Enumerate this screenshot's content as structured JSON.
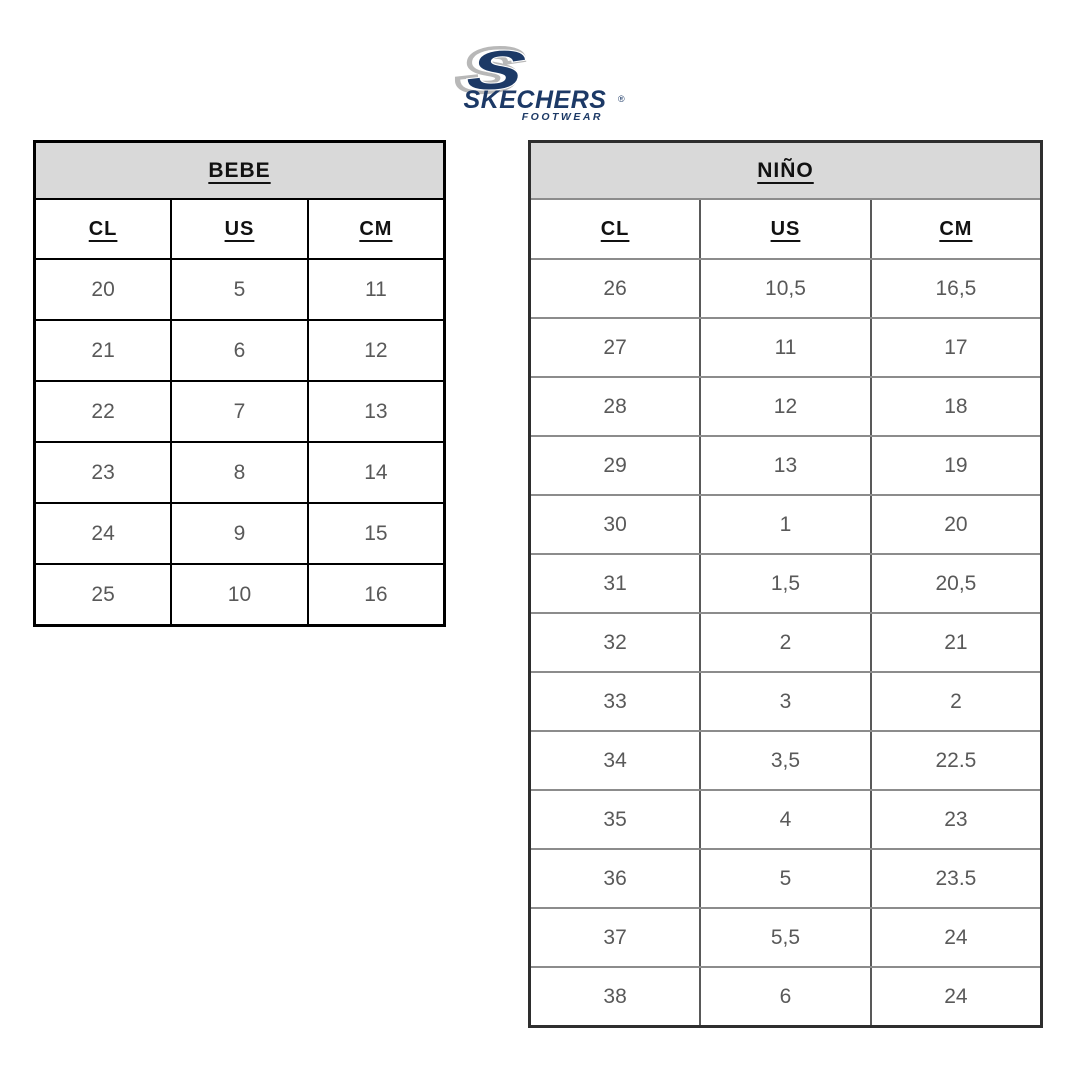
{
  "logo": {
    "monogram": "S",
    "brand": "SKECHERS",
    "registered": "®",
    "sub_brand": "FOOTWEAR",
    "navy": "#1c3966",
    "silver": "#b8b8b8"
  },
  "colors": {
    "header_bg": "#d9d9d9",
    "header_text": "#111111",
    "data_text": "#595959",
    "bebe_border": "#000000",
    "nino_border_horizontal": "#8c8c8c",
    "nino_border_vertical": "#595959",
    "page_bg": "#ffffff"
  },
  "tables": [
    {
      "id": "bebe",
      "title": "BEBE",
      "columns": [
        "CL",
        "US",
        "CM"
      ],
      "rows": [
        [
          "20",
          "5",
          "11"
        ],
        [
          "21",
          "6",
          "12"
        ],
        [
          "22",
          "7",
          "13"
        ],
        [
          "23",
          "8",
          "14"
        ],
        [
          "24",
          "9",
          "15"
        ],
        [
          "25",
          "10",
          "16"
        ]
      ]
    },
    {
      "id": "nino",
      "title": "NIÑO",
      "columns": [
        "CL",
        "US",
        "CM"
      ],
      "rows": [
        [
          "26",
          "10,5",
          "16,5"
        ],
        [
          "27",
          "11",
          "17"
        ],
        [
          "28",
          "12",
          "18"
        ],
        [
          "29",
          "13",
          "19"
        ],
        [
          "30",
          "1",
          "20"
        ],
        [
          "31",
          "1,5",
          "20,5"
        ],
        [
          "32",
          "2",
          "21"
        ],
        [
          "33",
          "3",
          "2"
        ],
        [
          "34",
          "3,5",
          "22.5"
        ],
        [
          "35",
          "4",
          "23"
        ],
        [
          "36",
          "5",
          "23.5"
        ],
        [
          "37",
          "5,5",
          "24"
        ],
        [
          "38",
          "6",
          "24"
        ]
      ]
    }
  ]
}
